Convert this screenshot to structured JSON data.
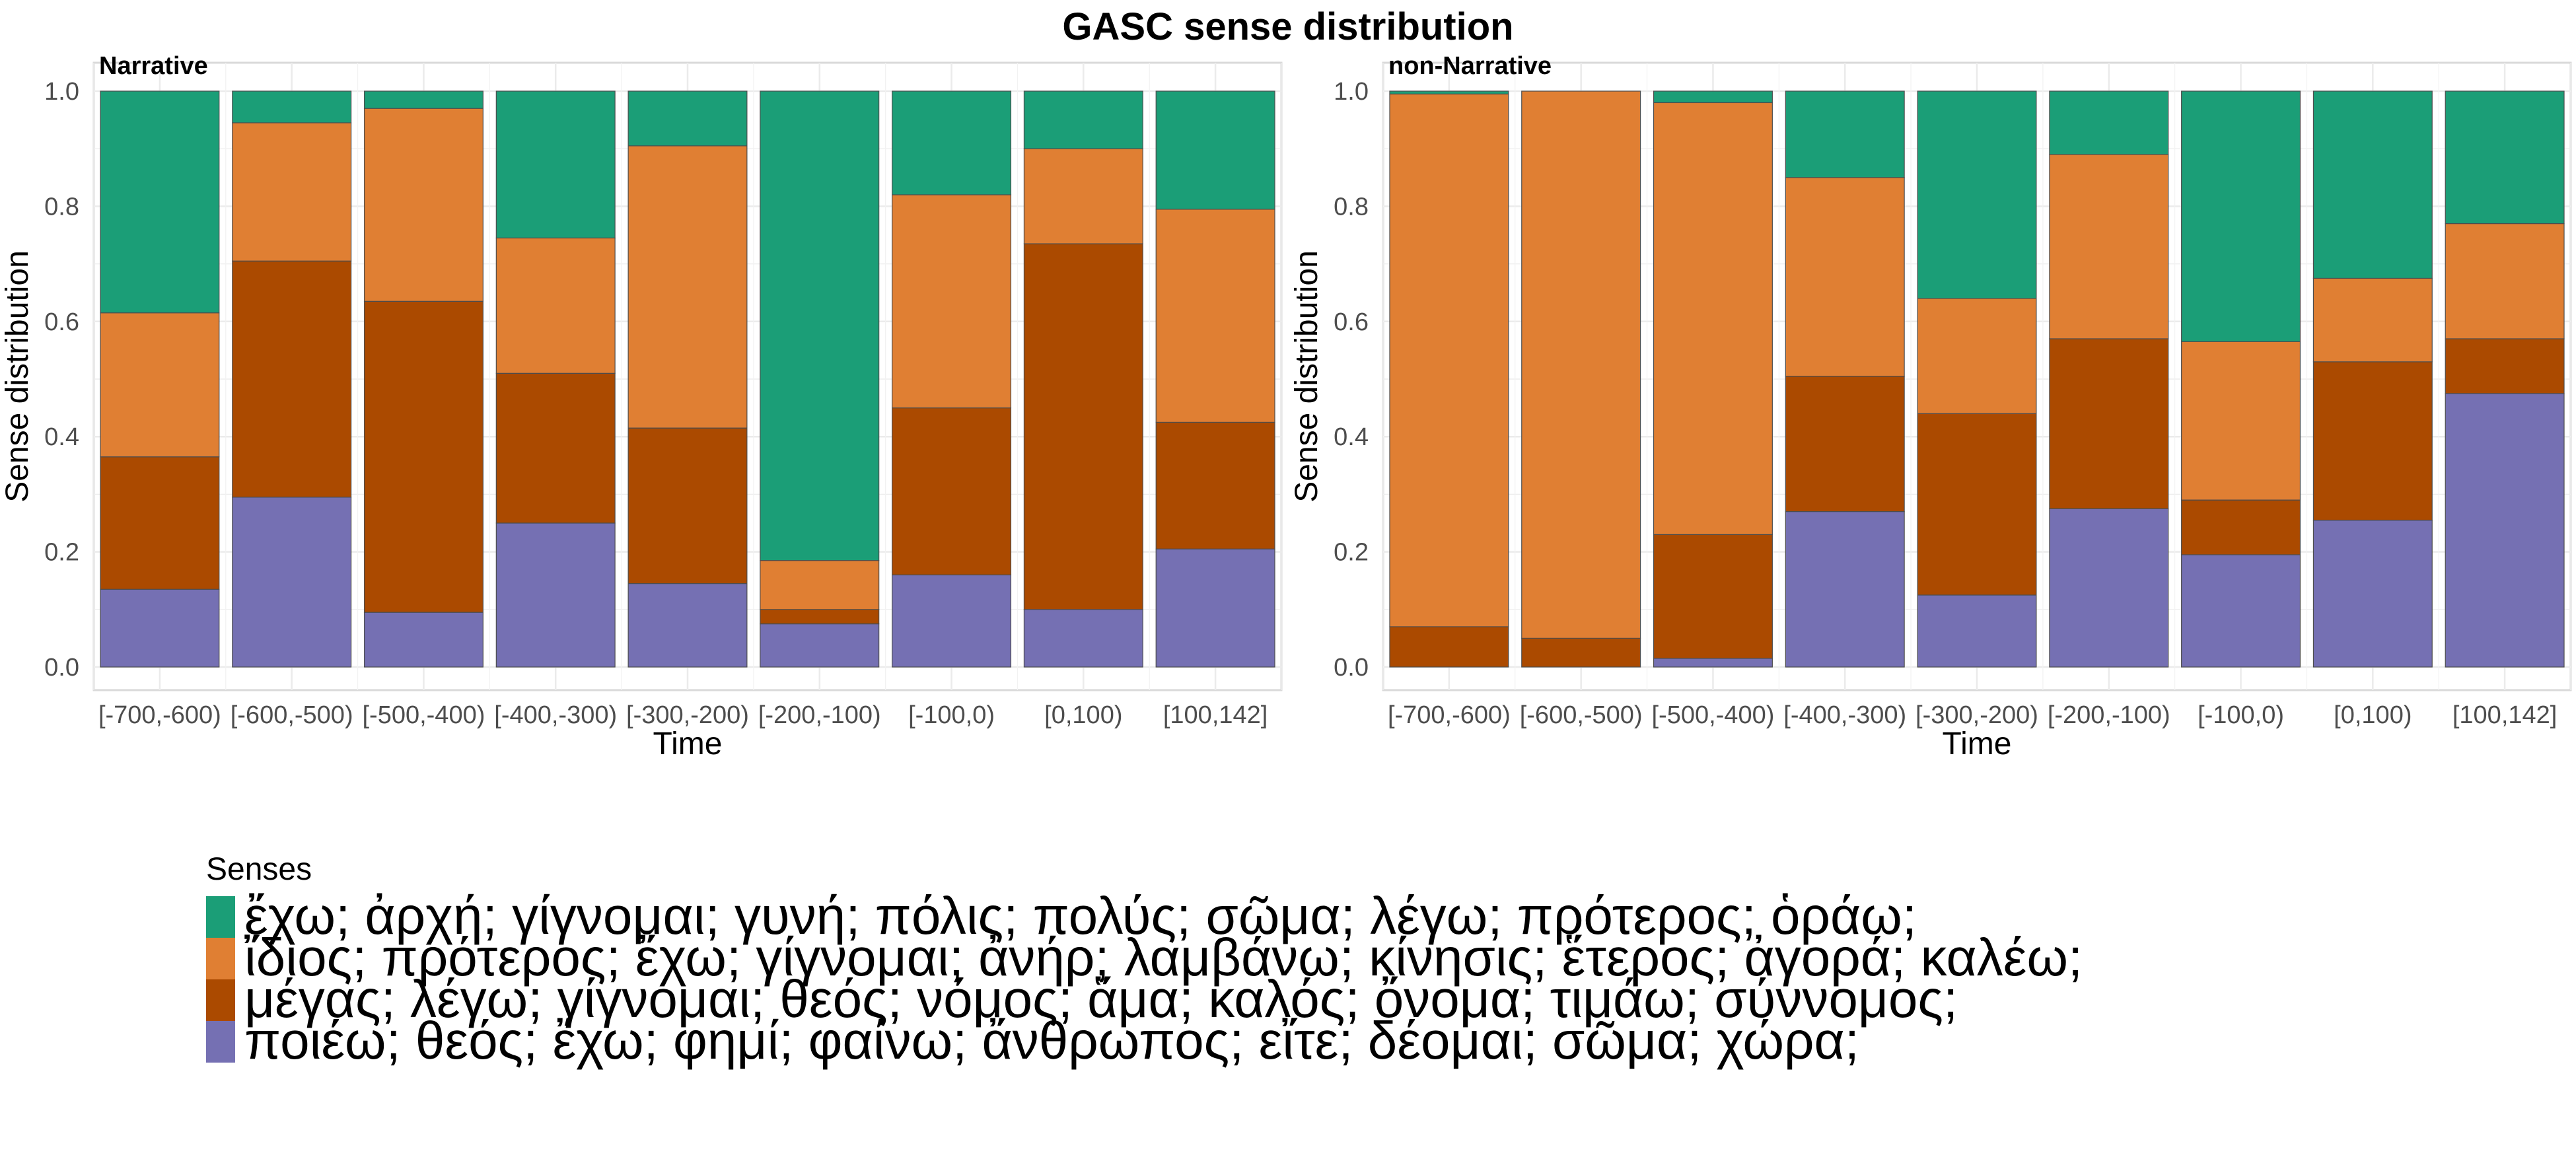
{
  "chart_data": {
    "type": "bar",
    "stacked": true,
    "title": "GASC sense distribution",
    "colors": [
      "#1b9e77",
      "#e07f33",
      "#ab4a00",
      "#7570b3"
    ],
    "legend": {
      "title": "Senses",
      "position": "bottom",
      "entries": [
        "ἔχω; ἀρχή; γίγνομαι; γυνή; πόλις; πολύς; σῶμα; λέγω; πρότερος; ὁράω;",
        "ἴδιος; πρότερος; ἔχω; γίγνομαι; ἀνήρ; λαμβάνω; κίνησις; ἕτερος; ἀγορά; καλέω;",
        "μέγας; λέγω; γίγνομαι; θεός; νόμος; ἅμα; καλός; ὄνομα; τιμάω; σύννομος;",
        "ποιέω; θεός; ἔχω; φημί; φαίνω; ἄνθρωπος; εἴτε; δέομαι; σῶμα; χώρα;"
      ]
    },
    "categories": [
      "[-700,-600)",
      "[-600,-500)",
      "[-500,-400)",
      "[-400,-300)",
      "[-300,-200)",
      "[-200,-100)",
      "[-100,0)",
      "[0,100)",
      "[100,142]"
    ],
    "xlabel": "Time",
    "ylabel": "Sense distribution",
    "ylim": [
      0,
      1
    ],
    "yticks": [
      "0.0",
      "0.2",
      "0.4",
      "0.6",
      "0.8",
      "1.0"
    ],
    "grid": true,
    "panels": [
      {
        "name": "Narrative",
        "series": [
          {
            "values": [
              0.385,
              0.055,
              0.03,
              0.255,
              0.095,
              0.815,
              0.18,
              0.1,
              0.205
            ]
          },
          {
            "values": [
              0.25,
              0.24,
              0.335,
              0.235,
              0.49,
              0.085,
              0.37,
              0.165,
              0.37
            ]
          },
          {
            "values": [
              0.23,
              0.41,
              0.54,
              0.26,
              0.27,
              0.025,
              0.29,
              0.635,
              0.22
            ]
          },
          {
            "values": [
              0.135,
              0.295,
              0.095,
              0.25,
              0.145,
              0.075,
              0.16,
              0.1,
              0.205
            ]
          }
        ]
      },
      {
        "name": "non-Narrative",
        "series": [
          {
            "values": [
              0.005,
              0.0,
              0.02,
              0.15,
              0.36,
              0.11,
              0.435,
              0.325,
              0.23
            ]
          },
          {
            "values": [
              0.925,
              0.95,
              0.75,
              0.345,
              0.2,
              0.32,
              0.275,
              0.145,
              0.2
            ]
          },
          {
            "values": [
              0.07,
              0.05,
              0.215,
              0.235,
              0.315,
              0.295,
              0.095,
              0.275,
              0.095
            ]
          },
          {
            "values": [
              0.0,
              0.0,
              0.015,
              0.27,
              0.125,
              0.275,
              0.195,
              0.255,
              0.475
            ]
          }
        ]
      }
    ]
  }
}
